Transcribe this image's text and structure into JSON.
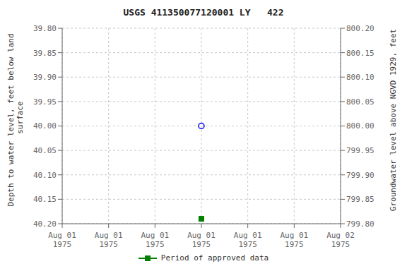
{
  "chart_data": {
    "type": "scatter",
    "title": "USGS 411350077120001 LY   422",
    "y_label": "Depth to water level, feet below land\n surface",
    "y2_label": "Groundwater level above NGVD 1929, feet",
    "categories": [
      "Aug 01\n1975",
      "Aug 01\n1975",
      "Aug 01\n1975",
      "Aug 01\n1975",
      "Aug 01\n1975",
      "Aug 01\n1975",
      "Aug 02\n1975"
    ],
    "series": [
      {
        "color": "blue",
        "marker": "open_circle",
        "values": [
          null,
          null,
          null,
          40.0,
          null,
          null,
          null
        ]
      },
      {
        "name": "Period of approved data",
        "color": "green",
        "marker": "square",
        "values": [
          null,
          null,
          null,
          40.19,
          null,
          null,
          null
        ]
      }
    ],
    "ylim": [
      40.2,
      39.8
    ],
    "yticks": [
      {
        "value": 39.8,
        "label": "39.80"
      },
      {
        "value": 39.85,
        "label": "39.85"
      },
      {
        "value": 39.9,
        "label": "39.90"
      },
      {
        "value": 39.95,
        "label": "39.95"
      },
      {
        "value": 40.0,
        "label": "40.00"
      },
      {
        "value": 40.05,
        "label": "40.05"
      },
      {
        "value": 40.1,
        "label": "40.10"
      },
      {
        "value": 40.15,
        "label": "40.15"
      },
      {
        "value": 40.2,
        "label": "40.20"
      }
    ],
    "y2lim": [
      799.8,
      800.2
    ],
    "y2ticks": [
      {
        "value": 800.2,
        "label": "800.20"
      },
      {
        "value": 800.15,
        "label": "800.15"
      },
      {
        "value": 800.1,
        "label": "800.10"
      },
      {
        "value": 800.05,
        "label": "800.05"
      },
      {
        "value": 800.0,
        "label": "800.00"
      },
      {
        "value": 799.95,
        "label": "799.95"
      },
      {
        "value": 799.9,
        "label": "799.90"
      },
      {
        "value": 799.85,
        "label": "799.85"
      },
      {
        "value": 799.8,
        "label": "799.80"
      }
    ],
    "grid": true,
    "legend": "bottom"
  }
}
